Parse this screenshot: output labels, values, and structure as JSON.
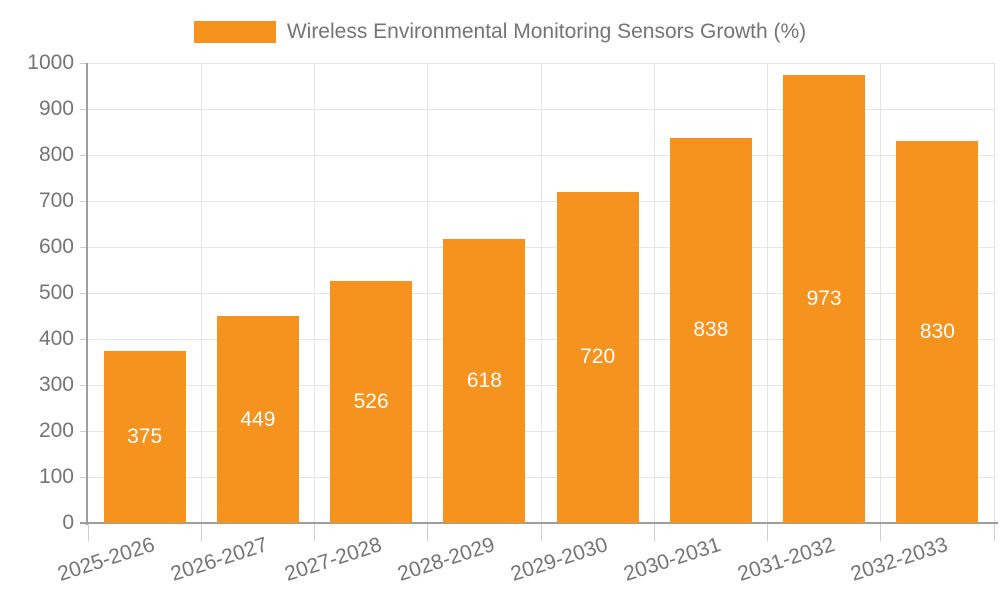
{
  "colors": {
    "bar": "#f6921e",
    "grid": "#e6e6e6",
    "axis": "#9e9e9e",
    "tick": "#cfcfcf",
    "axis_label": "#757575",
    "value_label": "#ffffff",
    "background": "#ffffff"
  },
  "legend": {
    "position": "top-center"
  },
  "chart_data": {
    "type": "bar",
    "title": "Wireless Environmental Monitoring Sensors Growth (%)",
    "categories": [
      "2025-2026",
      "2026-2027",
      "2027-2028",
      "2028-2029",
      "2029-2030",
      "2030-2031",
      "2031-2032",
      "2032-2033"
    ],
    "values": [
      375,
      449,
      526,
      618,
      720,
      838,
      973,
      830
    ],
    "xlabel": "",
    "ylabel": "",
    "ylim": [
      0,
      1000
    ],
    "ytick_interval": 100,
    "yticks": [
      0,
      100,
      200,
      300,
      400,
      500,
      600,
      700,
      800,
      900,
      1000
    ],
    "grid": true,
    "legend_position": "top",
    "value_labels": "inside-center",
    "x_label_rotation_deg": -18
  }
}
